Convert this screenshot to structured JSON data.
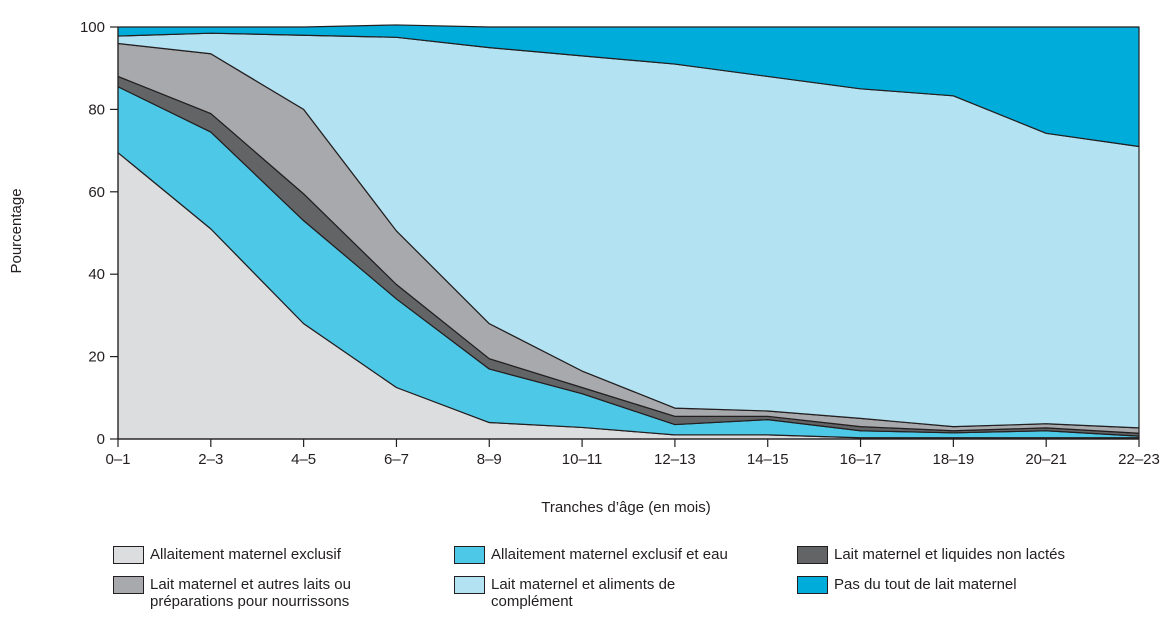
{
  "chart_data": {
    "type": "area",
    "stacked": true,
    "xlabel": "Tranches d’âge (en mois)",
    "ylabel": "Pourcentage",
    "ylim": [
      0,
      100
    ],
    "yticks": [
      0,
      20,
      40,
      60,
      80,
      100
    ],
    "categories": [
      "0–1",
      "2–3",
      "4–5",
      "6–7",
      "8–9",
      "10–11",
      "12–13",
      "14–15",
      "16–17",
      "18–19",
      "20–21",
      "22–23"
    ],
    "series": [
      {
        "name": "Allaitement maternel exclusif",
        "color": "#dcdddf",
        "values": [
          69.5,
          51.0,
          28.0,
          12.5,
          4.0,
          2.8,
          1.0,
          1.0,
          0.3,
          0.3,
          0.3,
          0.3
        ]
      },
      {
        "name": "Allaitement maternel exclusif et eau",
        "color": "#4dc8e6",
        "values": [
          16.0,
          23.5,
          25.0,
          21.5,
          13.0,
          8.2,
          2.5,
          3.7,
          1.7,
          1.2,
          1.7,
          0.4
        ]
      },
      {
        "name": "Lait maternel et liquides non lactés",
        "color": "#636466",
        "values": [
          2.5,
          4.5,
          6.5,
          3.5,
          2.5,
          1.5,
          2.0,
          0.8,
          1.0,
          0.5,
          0.7,
          0.7
        ]
      },
      {
        "name": "Lait maternel et autres laits ou\npréparations pour nourrissons",
        "color": "#a7a9ac",
        "values": [
          8.0,
          14.5,
          20.5,
          13.0,
          8.5,
          4.0,
          2.0,
          1.3,
          2.0,
          1.0,
          1.0,
          1.3
        ]
      },
      {
        "name": "Lait maternel et aliments de\ncomplément",
        "color": "#b3e2f2",
        "values": [
          1.8,
          5.0,
          18.0,
          47.0,
          67.0,
          76.5,
          83.5,
          81.2,
          80.0,
          80.3,
          70.5,
          68.3
        ]
      },
      {
        "name": "Pas du tout de lait maternel",
        "color": "#00acd9",
        "values": [
          2.2,
          1.5,
          2.0,
          3.0,
          5.0,
          7.0,
          9.0,
          12.0,
          15.0,
          16.7,
          25.8,
          29.0
        ]
      }
    ],
    "legend_position": "bottom",
    "legend_order": [
      0,
      1,
      2,
      3,
      4,
      5
    ],
    "grid": false
  }
}
